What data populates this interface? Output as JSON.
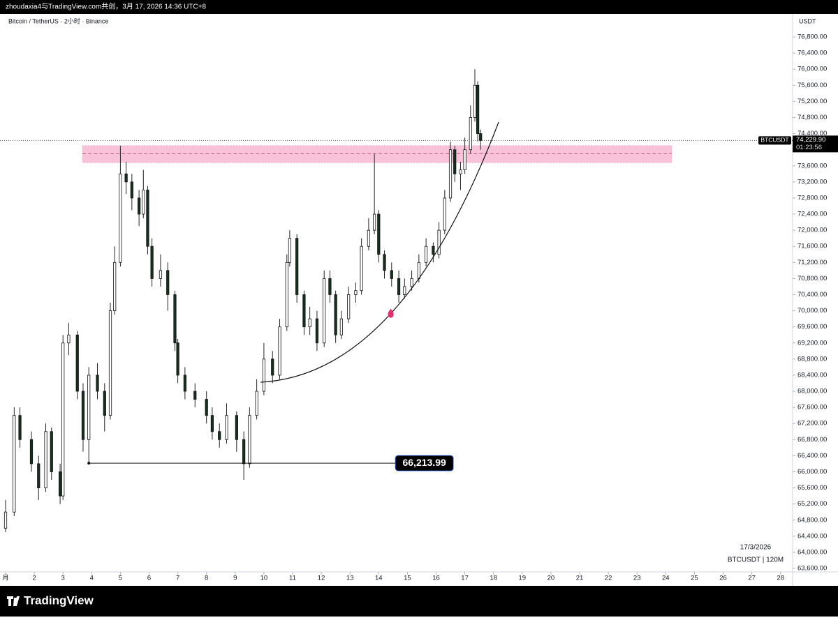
{
  "header": {
    "text": "zhoudaxia4与TradingView.com共创，3月 17, 2026 14:36 UTC+8"
  },
  "footer": {
    "logo": "TradingView"
  },
  "chart_data": {
    "type": "candlestick",
    "title": "Bitcoin / TetherUS · 2小时 · Binance",
    "y_axis_label": "USDT",
    "date_label": "17/3/2026",
    "symbol_label": "BTCUSDT | 120M",
    "colors": {
      "up": "#ffffff",
      "down": "#16301f",
      "outline": "#111111",
      "wick": "#222222"
    },
    "xlim": [
      0.8054,
      28.4209
    ],
    "xticks": [
      {
        "value": 1,
        "label": "月"
      },
      2,
      3,
      4,
      5,
      6,
      7,
      8,
      9,
      10,
      11,
      12,
      13,
      14,
      15,
      16,
      17,
      18,
      19,
      20,
      21,
      22,
      23,
      24,
      25,
      26,
      27,
      28
    ],
    "ylim": [
      63514,
      77372
    ],
    "yticks": [
      {
        "value": 63600,
        "label": "63,600.00"
      },
      {
        "value": 64000,
        "label": "64,000.00"
      },
      {
        "value": 64400,
        "label": "64,400.00"
      },
      {
        "value": 64800,
        "label": "64,800.00"
      },
      {
        "value": 65200,
        "label": "65,200.00"
      },
      {
        "value": 65600,
        "label": "65,600.00"
      },
      {
        "value": 66000,
        "label": "66,000.00"
      },
      {
        "value": 66400,
        "label": "66,400.00"
      },
      {
        "value": 66800,
        "label": "66,800.00"
      },
      {
        "value": 67200,
        "label": "67,200.00"
      },
      {
        "value": 67600,
        "label": "67,600.00"
      },
      {
        "value": 68000,
        "label": "68,000.00"
      },
      {
        "value": 68400,
        "label": "68,400.00"
      },
      {
        "value": 68800,
        "label": "68,800.00"
      },
      {
        "value": 69200,
        "label": "69,200.00"
      },
      {
        "value": 69600,
        "label": "69,600.00"
      },
      {
        "value": 70000,
        "label": "70,000.00"
      },
      {
        "value": 70400,
        "label": "70,400.00"
      },
      {
        "value": 70800,
        "label": "70,800.00"
      },
      {
        "value": 71200,
        "label": "71,200.00"
      },
      {
        "value": 71600,
        "label": "71,600.00"
      },
      {
        "value": 72000,
        "label": "72,000.00"
      },
      {
        "value": 72400,
        "label": "72,400.00"
      },
      {
        "value": 72800,
        "label": "72,800.00"
      },
      {
        "value": 73200,
        "label": "73,200.00"
      },
      {
        "value": 73600,
        "label": "73,600.00"
      },
      {
        "value": 74000,
        "label": "74,000.00"
      },
      {
        "value": 74400,
        "label": "74,400.00"
      },
      {
        "value": 74800,
        "label": "74,800.00"
      },
      {
        "value": 75200,
        "label": "75,200.00"
      },
      {
        "value": 75600,
        "label": "75,600.00"
      },
      {
        "value": 76000,
        "label": "76,000.00"
      },
      {
        "value": 76400,
        "label": "76,400.00"
      },
      {
        "value": 76800,
        "label": "76,800.00"
      }
    ],
    "x": [
      1.0,
      1.3,
      1.5,
      1.9,
      2.15,
      2.4,
      2.6,
      2.9,
      3.0,
      3.2,
      3.5,
      3.7,
      3.9,
      4.2,
      4.45,
      4.65,
      4.8,
      5.0,
      5.2,
      5.4,
      5.65,
      5.8,
      5.95,
      6.1,
      6.4,
      6.65,
      6.9,
      7.0,
      7.25,
      7.6,
      8.0,
      8.2,
      8.45,
      8.7,
      9.05,
      9.3,
      9.5,
      9.75,
      10.0,
      10.3,
      10.55,
      10.8,
      10.9,
      11.15,
      11.4,
      11.6,
      11.85,
      12.1,
      12.3,
      12.5,
      12.7,
      12.95,
      13.2,
      13.4,
      13.65,
      13.85,
      14.0,
      14.2,
      14.45,
      14.7,
      14.9,
      15.15,
      15.4,
      15.65,
      15.9,
      16.1,
      16.3,
      16.5,
      16.65,
      16.85,
      17.0,
      17.2,
      17.35,
      17.45,
      17.55
    ],
    "open": [
      64600,
      65000,
      67400,
      66800,
      66200,
      65600,
      67000,
      66000,
      65400,
      69200,
      69400,
      68000,
      66800,
      68400,
      68000,
      67400,
      70000,
      71200,
      73400,
      73200,
      72800,
      72400,
      73000,
      71600,
      70800,
      71000,
      70400,
      69200,
      68400,
      68000,
      67800,
      67400,
      67000,
      66800,
      67400,
      66800,
      66200,
      67400,
      68000,
      68800,
      68400,
      69600,
      71200,
      71800,
      70400,
      69600,
      69800,
      69200,
      70800,
      70400,
      69400,
      69800,
      70400,
      70500,
      71600,
      72000,
      72400,
      71400,
      71000,
      70800,
      70400,
      70600,
      70800,
      71200,
      71600,
      71400,
      72000,
      72800,
      74000,
      73400,
      73500,
      74000,
      74800,
      75600,
      74400
    ],
    "high": [
      65300,
      67600,
      67600,
      67000,
      66400,
      67200,
      67100,
      66200,
      69400,
      69700,
      69500,
      68200,
      68600,
      68700,
      68200,
      70200,
      71600,
      74100,
      73700,
      73400,
      73000,
      73500,
      73100,
      71800,
      71400,
      71200,
      70500,
      69300,
      68600,
      68200,
      68000,
      67600,
      67200,
      67700,
      67500,
      67000,
      67600,
      68300,
      69200,
      69000,
      69800,
      71400,
      72000,
      71900,
      70500,
      70100,
      70000,
      71000,
      71000,
      70500,
      70000,
      70600,
      70700,
      71800,
      72300,
      73900,
      72500,
      71500,
      71200,
      71000,
      70800,
      71000,
      71400,
      71800,
      71700,
      72200,
      73000,
      74200,
      74100,
      73700,
      74300,
      75100,
      76000,
      75700,
      74500
    ],
    "low": [
      64500,
      64900,
      66600,
      66000,
      65300,
      65500,
      65800,
      65200,
      65300,
      68900,
      67800,
      66500,
      66213.99,
      67800,
      67000,
      67300,
      69900,
      71100,
      72900,
      72500,
      72100,
      72300,
      71400,
      70600,
      70600,
      70000,
      69000,
      68200,
      67800,
      67600,
      67200,
      66800,
      66600,
      66700,
      66500,
      65800,
      66100,
      67300,
      67900,
      68200,
      68300,
      69500,
      71100,
      70200,
      69400,
      69400,
      69000,
      69100,
      70200,
      69200,
      69300,
      69700,
      70200,
      70400,
      71500,
      71900,
      71200,
      70800,
      70600,
      70200,
      70300,
      70500,
      70700,
      71100,
      71200,
      71300,
      71900,
      72700,
      73200,
      73000,
      73400,
      73900,
      74700,
      74200,
      74000
    ],
    "close": [
      65000,
      67400,
      66800,
      66200,
      65600,
      67000,
      66000,
      65400,
      69200,
      69400,
      68000,
      66800,
      68400,
      68000,
      67400,
      70000,
      71200,
      73400,
      73200,
      72800,
      72400,
      73000,
      71600,
      70800,
      71000,
      70400,
      69200,
      68400,
      68000,
      67800,
      67400,
      67000,
      66800,
      67400,
      66800,
      66200,
      67400,
      68000,
      68800,
      68400,
      69600,
      71200,
      71800,
      70400,
      69600,
      69800,
      69200,
      70800,
      70400,
      69400,
      69800,
      70400,
      70500,
      71600,
      72000,
      72400,
      71400,
      71000,
      70800,
      70400,
      70600,
      70800,
      71200,
      71600,
      71400,
      72000,
      72800,
      74000,
      73400,
      73500,
      74000,
      74800,
      75600,
      74400,
      74229.9
    ],
    "resistance_zone": {
      "low": 73680,
      "high": 74100,
      "mid": 73900,
      "x": [
        3.68,
        24.21
      ],
      "color": "#f8c3d9"
    },
    "low_line": {
      "value": 66213.99,
      "label": "66,213.99",
      "x": [
        3.9,
        14.58
      ]
    },
    "last_price": {
      "value": 74229.9,
      "label": "74,229.90",
      "symbol": "BTCUSDT",
      "countdown": "01:23:56"
    },
    "curve": [
      {
        "x": 9.88,
        "y": 68225
      },
      {
        "x": 14.42,
        "y": 69930
      },
      {
        "x": 18.18,
        "y": 74687
      }
    ],
    "marker_color": "#e0306e"
  }
}
